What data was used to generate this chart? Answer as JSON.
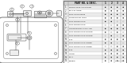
{
  "bg_color": "#e8e8e8",
  "left_bg": "#ffffff",
  "table_bg": "#ffffff",
  "title_text": "PART NO. & DESC.",
  "col_headers": [
    "1",
    "2",
    "3",
    "4"
  ],
  "rows": [
    {
      "num": "1",
      "desc": "DOOR LOCK ACTUATOR",
      "dots": [
        1,
        1,
        1,
        1
      ]
    },
    {
      "num": "2",
      "desc": "BOLT-FLANGE",
      "dots": [
        1,
        1,
        1,
        1
      ]
    },
    {
      "num": "3",
      "desc": "ROD-LOCK KNOB",
      "dots": [
        1,
        1,
        1,
        1
      ]
    },
    {
      "num": "4",
      "desc": "KNOB-DOOR LOCK",
      "dots": [
        1,
        1,
        1,
        1
      ]
    },
    {
      "num": "5",
      "desc": "ROD-DOOR LOCK",
      "dots": [
        1,
        1,
        0,
        0
      ]
    },
    {
      "num": "6",
      "desc": "ROD-DOOR LOCK",
      "dots": [
        0,
        0,
        1,
        1
      ]
    },
    {
      "num": "7",
      "desc": "LEVER-DOOR LOCK LINK",
      "dots": [
        1,
        1,
        1,
        1
      ]
    },
    {
      "num": "8",
      "desc": "ROD-DOOR LOCK OUTER",
      "dots": [
        1,
        0,
        1,
        0
      ]
    },
    {
      "num": "9",
      "desc": "ROD-DOOR LOCK OUTER",
      "dots": [
        0,
        1,
        0,
        1
      ]
    },
    {
      "num": "10",
      "desc": "CLIP",
      "dots": [
        1,
        1,
        1,
        1
      ]
    },
    {
      "num": "11",
      "desc": "ROD-DOOR LOCK INNER",
      "dots": [
        1,
        1,
        0,
        0
      ]
    },
    {
      "num": "12",
      "desc": "ROD-DOOR LOCK INNER",
      "dots": [
        0,
        0,
        1,
        1
      ]
    },
    {
      "num": "13",
      "desc": "CLIP",
      "dots": [
        1,
        1,
        1,
        1
      ]
    },
    {
      "num": "14",
      "desc": "LEVER",
      "dots": [
        1,
        1,
        1,
        1
      ]
    },
    {
      "num": "15",
      "desc": "BOLT",
      "dots": [
        1,
        1,
        1,
        1
      ]
    },
    {
      "num": "16",
      "desc": "SCREW",
      "dots": [
        1,
        1,
        1,
        1
      ]
    }
  ],
  "footer": "60178GA030",
  "line_color": "#444444",
  "thin_line": 0.35,
  "med_line": 0.55
}
